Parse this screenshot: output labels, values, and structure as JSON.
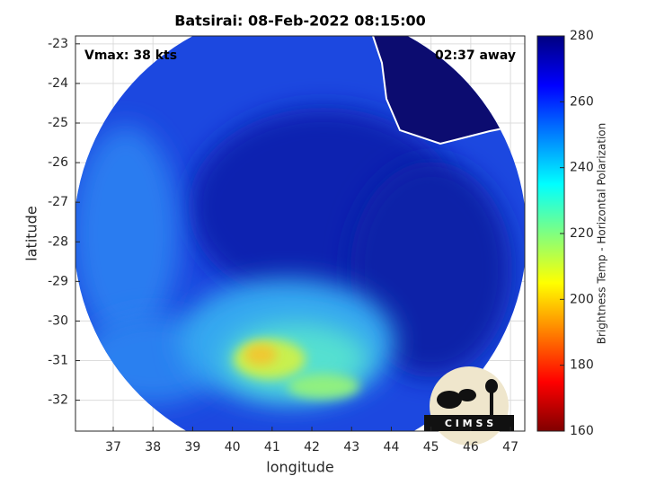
{
  "chart_data": {
    "type": "image",
    "title": "Batsirai: 08-Feb-2022 08:15:00",
    "annotations": [
      "Vmax: 38 kts",
      "02:37 away"
    ],
    "x_label": "longitude",
    "y_label": "latitude",
    "xlim": [
      36.05,
      47.36
    ],
    "ylim": [
      -32.78,
      -22.8
    ],
    "xticks": [
      37,
      38,
      39,
      40,
      41,
      42,
      43,
      44,
      45,
      46,
      47
    ],
    "yticks": [
      -23,
      -24,
      -25,
      -26,
      -27,
      -28,
      -29,
      -30,
      -31,
      -32
    ],
    "grid": true,
    "colormap": "jet",
    "colorbar_label": "Brightness Temp - Horizontal Polarization",
    "clim": [
      160,
      280
    ],
    "cticks": [
      160,
      180,
      200,
      220,
      240,
      260,
      280
    ],
    "logo": "C I M S S"
  }
}
